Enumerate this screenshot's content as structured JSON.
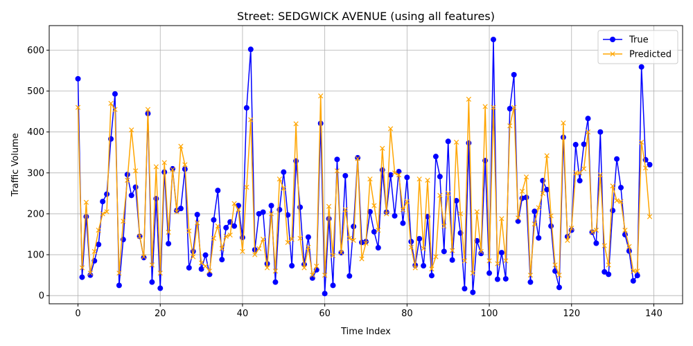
{
  "chart_data": {
    "type": "line",
    "title": "Street: SEDGWICK AVENUE (using all features)",
    "xlabel": "Time Index",
    "ylabel": "Traffic Volume",
    "xlim": [
      -7,
      147
    ],
    "ylim": [
      -20,
      660
    ],
    "xticks": [
      0,
      20,
      40,
      60,
      80,
      100,
      120,
      140
    ],
    "yticks": [
      0,
      100,
      200,
      300,
      400,
      500,
      600
    ],
    "grid": true,
    "legend_position": "top-right",
    "colors": {
      "true": "#0000ff",
      "predicted": "#ffa500"
    },
    "series": [
      {
        "name": "True",
        "marker": "circle",
        "values": [
          530,
          45,
          193,
          50,
          85,
          125,
          230,
          248,
          383,
          493,
          25,
          137,
          296,
          245,
          265,
          145,
          93,
          445,
          33,
          237,
          18,
          302,
          127,
          310,
          208,
          213,
          309,
          68,
          108,
          198,
          65,
          99,
          52,
          185,
          257,
          88,
          166,
          180,
          170,
          220,
          142,
          459,
          602,
          112,
          200,
          204,
          78,
          220,
          33,
          210,
          302,
          197,
          73,
          329,
          216,
          76,
          143,
          43,
          63,
          421,
          5,
          188,
          25,
          333,
          105,
          293,
          48,
          169,
          337,
          130,
          132,
          205,
          156,
          117,
          307,
          204,
          295,
          195,
          303,
          177,
          289,
          132,
          74,
          139,
          73,
          193,
          49,
          340,
          291,
          108,
          377,
          87,
          232,
          153,
          17,
          373,
          8,
          134,
          103,
          330,
          55,
          626,
          40,
          105,
          41,
          457,
          540,
          182,
          238,
          240,
          33,
          206,
          141,
          281,
          259,
          170,
          60,
          20,
          387,
          144,
          160,
          369,
          281,
          370,
          433,
          155,
          128,
          400,
          58,
          52,
          208,
          334,
          264,
          149,
          109,
          36,
          49,
          559,
          332,
          320
        ]
      },
      {
        "name": "Predicted",
        "marker": "x",
        "values": [
          460,
          68,
          228,
          55,
          108,
          160,
          200,
          205,
          470,
          455,
          55,
          182,
          282,
          405,
          305,
          145,
          95,
          455,
          75,
          315,
          55,
          325,
          155,
          308,
          205,
          365,
          320,
          158,
          95,
          178,
          80,
          72,
          60,
          140,
          170,
          115,
          145,
          148,
          225,
          210,
          108,
          265,
          430,
          100,
          115,
          138,
          68,
          200,
          60,
          285,
          262,
          130,
          138,
          420,
          140,
          68,
          118,
          50,
          72,
          488,
          50,
          218,
          98,
          305,
          105,
          210,
          140,
          135,
          335,
          90,
          128,
          285,
          220,
          160,
          360,
          200,
          408,
          300,
          295,
          210,
          230,
          118,
          68,
          285,
          115,
          282,
          65,
          95,
          245,
          170,
          250,
          110,
          375,
          200,
          85,
          480,
          55,
          205,
          108,
          462,
          85,
          460,
          78,
          188,
          85,
          415,
          460,
          190,
          255,
          290,
          50,
          175,
          215,
          250,
          342,
          195,
          75,
          50,
          422,
          135,
          165,
          300,
          300,
          310,
          400,
          155,
          160,
          295,
          122,
          75,
          268,
          232,
          230,
          160,
          120,
          60,
          60,
          375,
          312,
          193
        ]
      }
    ]
  }
}
